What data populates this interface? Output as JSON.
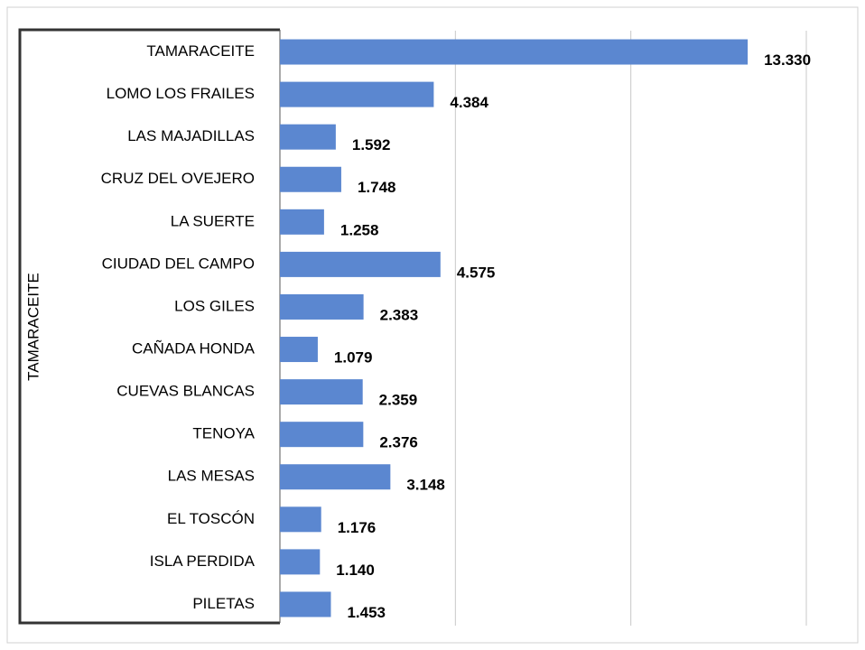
{
  "chart_data": {
    "type": "bar",
    "orientation": "horizontal",
    "group_label": "TAMARACEITE",
    "categories": [
      "TAMARACEITE",
      "LOMO LOS FRAILES",
      "LAS MAJADILLAS",
      "CRUZ DEL OVEJERO",
      "LA SUERTE",
      "CIUDAD DEL CAMPO",
      "LOS GILES",
      "CAÑADA HONDA",
      "CUEVAS BLANCAS",
      "TENOYA",
      "LAS MESAS",
      "EL TOSCÓN",
      "ISLA PERDIDA",
      "PILETAS"
    ],
    "values": [
      13330,
      4384,
      1592,
      1748,
      1258,
      4575,
      2383,
      1079,
      2359,
      2376,
      3148,
      1176,
      1140,
      1453
    ],
    "value_labels": [
      "13.330",
      "4.384",
      "1.592",
      "1.748",
      "1.258",
      "4.575",
      "2.383",
      "1.079",
      "2.359",
      "2.376",
      "3.148",
      "1.176",
      "1.140",
      "1.453"
    ],
    "color": "#5b87d0",
    "xlim": [
      0,
      15000
    ],
    "xticks": [
      5000,
      10000,
      15000
    ],
    "grid": true
  }
}
